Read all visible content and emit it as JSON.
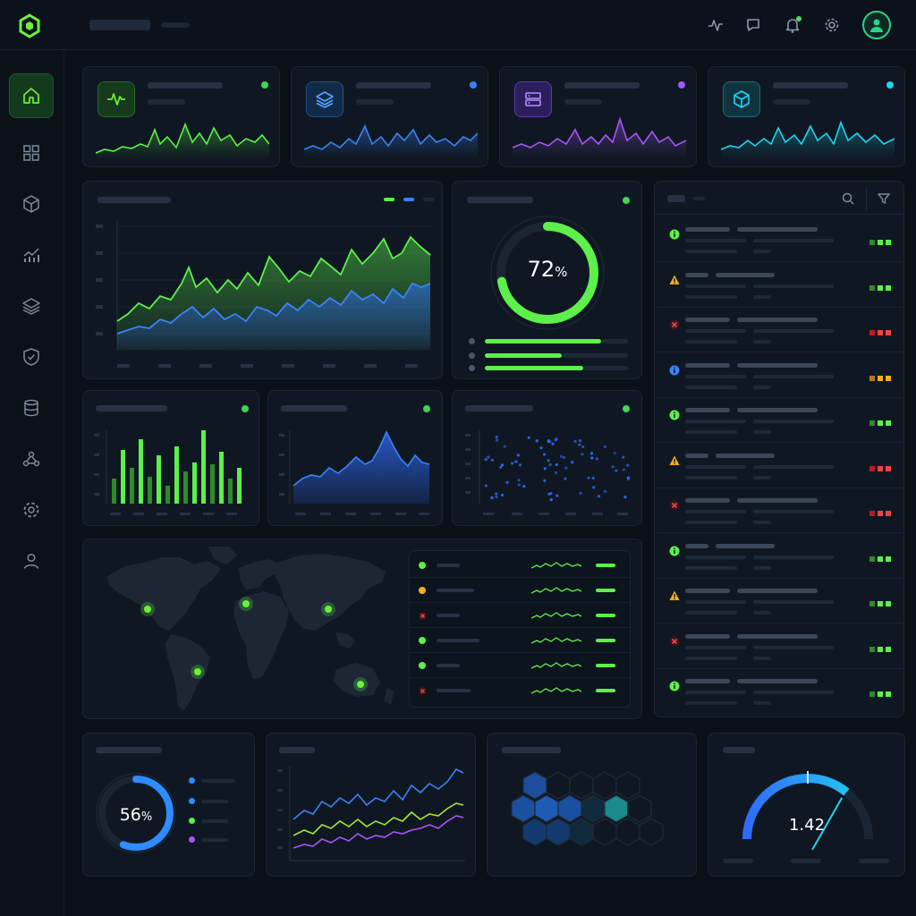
{
  "header": {
    "icons": [
      "activity-icon",
      "chat-icon",
      "bell-icon",
      "gear-icon",
      "user-avatar-icon"
    ]
  },
  "sidebar": {
    "items": [
      "home-icon",
      "grid-icon",
      "cube-icon",
      "analytics-icon",
      "layers-icon",
      "shield-icon",
      "database-icon",
      "network-icon",
      "settings-icon",
      "user-icon"
    ],
    "active": "home-icon"
  },
  "kpi_cards": [
    {
      "icon": "pulse-icon",
      "accent": "#5df04a",
      "status_color": "#3fd655"
    },
    {
      "icon": "layers-icon",
      "accent": "#3b82f6",
      "status_color": "#3b82f6"
    },
    {
      "icon": "server-icon",
      "accent": "#9b5cf6",
      "status_color": "#9b5cf6"
    },
    {
      "icon": "cube-icon",
      "accent": "#22d3ee",
      "status_color": "#22d3ee"
    }
  ],
  "usage_gauge": {
    "value": "72",
    "unit": "%",
    "fraction": 0.72,
    "accent": "#5df04a"
  },
  "storage_donut": {
    "value": "56",
    "unit": "%",
    "fraction": 0.56,
    "accent": "#2f8cff"
  },
  "speed_gauge": {
    "value": "1.42",
    "fraction": 0.72
  },
  "event_log": [
    {
      "status": "info-green",
      "severity": "ok"
    },
    {
      "status": "warning",
      "severity": "ok"
    },
    {
      "status": "error",
      "severity": "critical"
    },
    {
      "status": "info-blue",
      "severity": "warn"
    },
    {
      "status": "info-green",
      "severity": "ok"
    },
    {
      "status": "warning",
      "severity": "critical"
    },
    {
      "status": "error",
      "severity": "critical"
    },
    {
      "status": "info-green",
      "severity": "ok"
    },
    {
      "status": "warning",
      "severity": "ok"
    },
    {
      "status": "error",
      "severity": "ok"
    },
    {
      "status": "info-green",
      "severity": "ok"
    }
  ],
  "regions": [
    {
      "status": "ok"
    },
    {
      "status": "warn"
    },
    {
      "status": "error"
    },
    {
      "status": "ok"
    },
    {
      "status": "ok"
    },
    {
      "status": "error"
    }
  ],
  "colors": {
    "green": "#5df04a",
    "blue": "#2f6bff",
    "purple": "#a855f7",
    "cyan": "#22d3ee",
    "amber": "#f5b014",
    "red": "#ef4444",
    "background": "#0a1018",
    "panel": "#0f1822"
  }
}
